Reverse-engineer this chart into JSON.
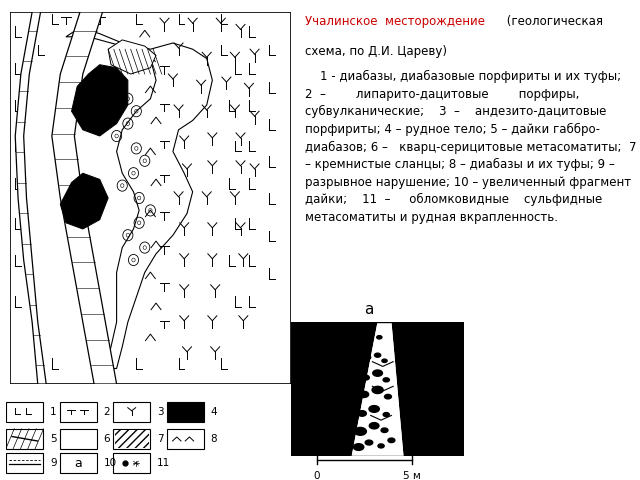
{
  "title_red": "Учалинское  месторождение",
  "title_black_1": " (геологическая",
  "title_black_2": "схема, по Д.И. Цареву)",
  "body": "    1 - диабазы, диабазовые порфириты и их туфы;\n2  –        липарито-дацитовые        порфиры,\nсубвулканические;    3  –    андезито-дацитовые\nпорфириты; 4 – рудное тело; 5 – дайки габбро-\nдиабазов; 6 –   кварц-серицитовые метасоматиты;  7\n– кремнистые сланцы; 8 – диабазы и их туфы; 9 –\nразрывное нарушение; 10 – увеличенный фрагмент\nдайки;    11  –     обломковидные    сульфидные\nметасоматиты и рудная вкрапленность.",
  "bg_color": "#ffffff",
  "title_color": "#cc0000",
  "font_size": 8.5
}
